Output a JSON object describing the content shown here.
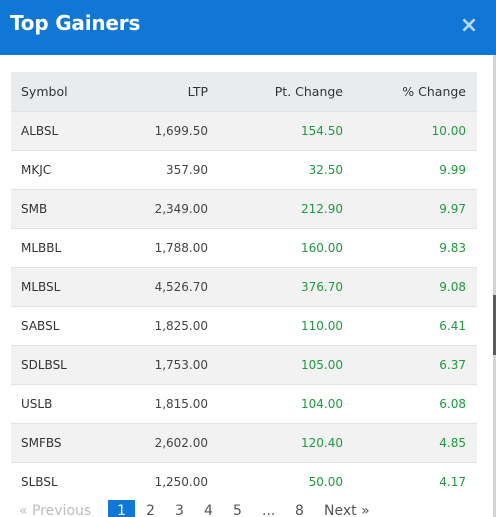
{
  "modal": {
    "title": "Top Gainers",
    "close_label": "×"
  },
  "table": {
    "columns": [
      "Symbol",
      "LTP",
      "Pt. Change",
      "% Change"
    ],
    "rows": [
      {
        "symbol": "ALBSL",
        "ltp": "1,699.50",
        "pt_change": "154.50",
        "pct_change": "10.00"
      },
      {
        "symbol": "MKJC",
        "ltp": "357.90",
        "pt_change": "32.50",
        "pct_change": "9.99"
      },
      {
        "symbol": "SMB",
        "ltp": "2,349.00",
        "pt_change": "212.90",
        "pct_change": "9.97"
      },
      {
        "symbol": "MLBBL",
        "ltp": "1,788.00",
        "pt_change": "160.00",
        "pct_change": "9.83"
      },
      {
        "symbol": "MLBSL",
        "ltp": "4,526.70",
        "pt_change": "376.70",
        "pct_change": "9.08"
      },
      {
        "symbol": "SABSL",
        "ltp": "1,825.00",
        "pt_change": "110.00",
        "pct_change": "6.41"
      },
      {
        "symbol": "SDLBSL",
        "ltp": "1,753.00",
        "pt_change": "105.00",
        "pct_change": "6.37"
      },
      {
        "symbol": "USLB",
        "ltp": "1,815.00",
        "pt_change": "104.00",
        "pct_change": "6.08"
      },
      {
        "symbol": "SMFBS",
        "ltp": "2,602.00",
        "pt_change": "120.40",
        "pct_change": "4.85"
      },
      {
        "symbol": "SLBSL",
        "ltp": "1,250.00",
        "pt_change": "50.00",
        "pct_change": "4.17"
      }
    ]
  },
  "pagination": {
    "previous_label": "« Previous",
    "pages": [
      "1",
      "2",
      "3",
      "4",
      "5",
      "...",
      "8"
    ],
    "active_page": "1",
    "next_label": "Next »"
  },
  "colors": {
    "header_bg": "#1177d6",
    "positive": "#1e9a3e",
    "active_page_bg": "#1177d6"
  }
}
